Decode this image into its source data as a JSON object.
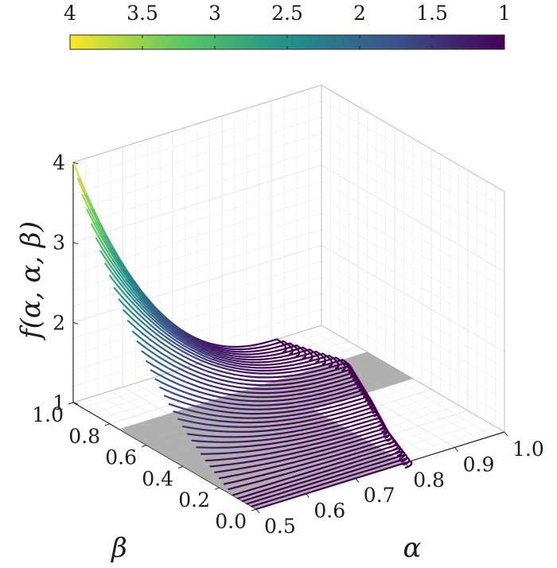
{
  "chart_data": {
    "type": "line",
    "title": "",
    "xlabel": "α",
    "ylabel": "β",
    "zlabel": "f(α, α, β)",
    "xlim": [
      0.5,
      1.0
    ],
    "ylim": [
      0.0,
      1.0
    ],
    "zlim": [
      1,
      4
    ],
    "x_ticks": [
      "0.5",
      "0.6",
      "0.7",
      "0.8",
      "0.9",
      "1.0"
    ],
    "y_ticks": [
      "0.0",
      "0.2",
      "0.4",
      "0.6",
      "0.8",
      "1.0"
    ],
    "z_ticks": [
      "1",
      "2",
      "3",
      "4"
    ],
    "grid": true,
    "colorbar": {
      "location": "top",
      "range": [
        1,
        4
      ],
      "direction": "reversed",
      "tick_labels": [
        "4",
        "3.5",
        "3",
        "2.5",
        "2",
        "1.5",
        "1"
      ],
      "colormap": "viridis"
    },
    "series_description": "curves of constant beta from 1.0 down to 0.0; each curve starts at alpha = 0.5 and reaches the minimum value 1 where the surface meets the plane f = 1",
    "beta_levels": [
      1.0,
      0.975,
      0.95,
      0.925,
      0.9,
      0.875,
      0.85,
      0.825,
      0.8,
      0.775,
      0.75,
      0.725,
      0.7,
      0.675,
      0.65,
      0.625,
      0.6,
      0.575,
      0.55,
      0.525,
      0.5,
      0.475,
      0.45,
      0.425,
      0.4,
      0.375,
      0.35,
      0.325,
      0.3,
      0.275,
      0.25,
      0.225,
      0.2,
      0.175,
      0.15,
      0.125,
      0.1,
      0.075,
      0.05,
      0.025,
      0.0
    ],
    "value_at_alpha_0_5": [
      4.0,
      3.83,
      3.66,
      3.51,
      3.36,
      3.22,
      3.09,
      2.97,
      2.85,
      2.73,
      2.62,
      2.52,
      2.42,
      2.32,
      2.23,
      2.14,
      2.05,
      1.97,
      1.89,
      1.82,
      1.75,
      1.68,
      1.62,
      1.56,
      1.5,
      1.44,
      1.39,
      1.34,
      1.29,
      1.24,
      1.2,
      1.16,
      1.12,
      1.08,
      1.05,
      1.01,
      1.0,
      1.0,
      1.0,
      1.0,
      1.0
    ],
    "alpha_at_minimum": [
      0.91,
      0.914,
      0.918,
      0.922,
      0.926,
      0.93,
      0.934,
      0.938,
      0.942,
      0.946,
      0.95,
      0.945,
      0.94,
      0.935,
      0.93,
      0.925,
      0.92,
      0.915,
      0.91,
      0.905,
      0.9,
      0.895,
      0.89,
      0.885,
      0.88,
      0.875,
      0.87,
      0.865,
      0.86,
      0.855,
      0.85,
      0.846,
      0.842,
      0.838,
      0.834,
      0.83,
      0.826,
      0.822,
      0.818,
      0.814,
      0.81
    ],
    "shaded_regions": [
      {
        "alpha": [
          0.5,
          1.0
        ],
        "beta": [
          0.5,
          0.75
        ],
        "f": 1
      },
      {
        "alpha": [
          0.5,
          0.8
        ],
        "beta": [
          0.0,
          0.5
        ],
        "f": 1
      }
    ]
  }
}
